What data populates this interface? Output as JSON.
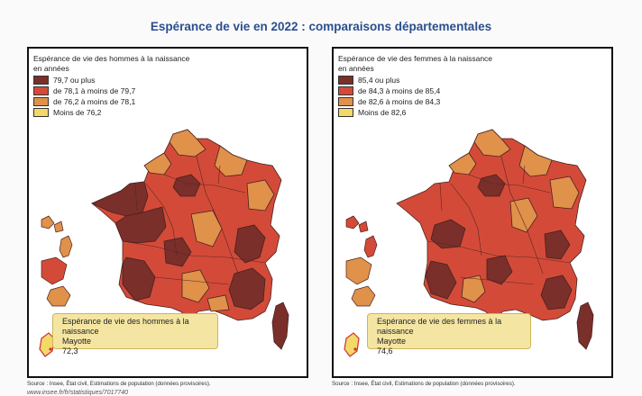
{
  "title": "Espérance de vie en 2022 : comparaisons départementales",
  "panels": [
    {
      "id": "men",
      "legend_title_1": "Espérance de vie des hommes à la naissance",
      "legend_title_2": "en années",
      "classes": [
        {
          "label": "79,7 ou plus",
          "color": "#7a2f2a"
        },
        {
          "label": "de 78,1 à moins de 79,7",
          "color": "#d34b38"
        },
        {
          "label": "de 76,2 à moins de 78,1",
          "color": "#e0914a"
        },
        {
          "label": "Moins de 76,2",
          "color": "#f3d86a"
        }
      ],
      "callout": {
        "title": "Espérance de vie des hommes à la naissance",
        "place": "Mayotte",
        "value": "72,3"
      },
      "source": "Source : Insee, État civil, Estimations de population (données provisoires)."
    },
    {
      "id": "women",
      "legend_title_1": "Espérance de vie des femmes à la naissance",
      "legend_title_2": "en années",
      "classes": [
        {
          "label": "85,4 ou plus",
          "color": "#7a2f2a"
        },
        {
          "label": "de 84,3 à moins de 85,4",
          "color": "#d34b38"
        },
        {
          "label": "de 82,6 à moins de 84,3",
          "color": "#e0914a"
        },
        {
          "label": "Moins de 82,6",
          "color": "#f3d86a"
        }
      ],
      "callout": {
        "title": "Espérance de vie des femmes à la naissance",
        "place": "Mayotte",
        "value": "74,6"
      },
      "source": "Source : Insee, État civil, Estimations de population (données provisoires)."
    }
  ],
  "url": "www.insee.fr/fr/statistiques/7017740"
}
